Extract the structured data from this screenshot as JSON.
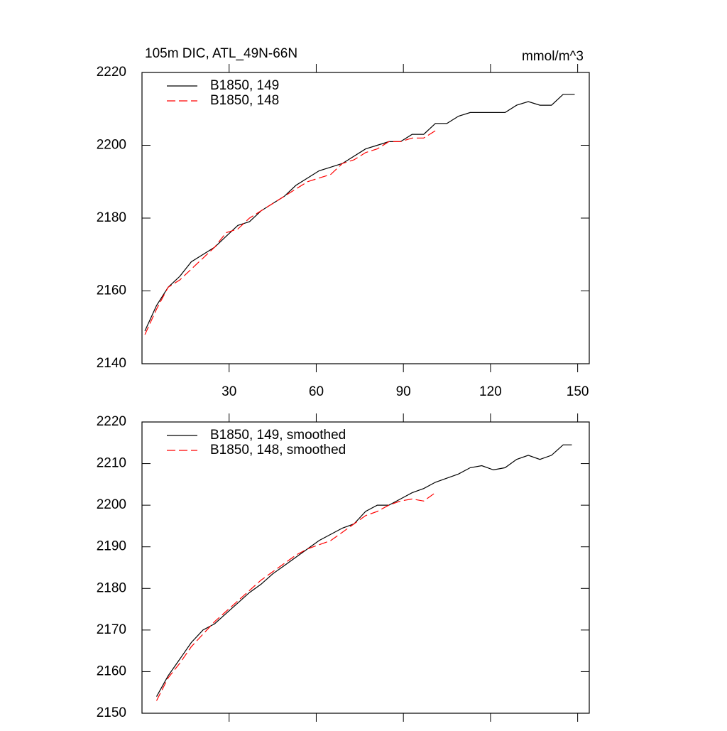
{
  "chart_data": [
    {
      "type": "line",
      "title": "105m DIC, ATL_49N-66N",
      "units": "mmol/m^3",
      "xlim": [
        0,
        154
      ],
      "xticks": [
        30,
        60,
        90,
        120,
        150
      ],
      "show_xtick_labels": true,
      "ylim": [
        2140,
        2220
      ],
      "yticks": [
        2140,
        2160,
        2180,
        2200,
        2220
      ],
      "series": [
        {
          "name": "B1850, 149",
          "color": "#000000",
          "dashed": false,
          "x": [
            1,
            5,
            9,
            13,
            17,
            21,
            25,
            29,
            33,
            37,
            41,
            45,
            49,
            53,
            57,
            61,
            65,
            69,
            73,
            77,
            81,
            85,
            89,
            93,
            97,
            101,
            105,
            109,
            113,
            117,
            121,
            125,
            129,
            133,
            137,
            141,
            145,
            149
          ],
          "values": [
            2149,
            2156,
            2161,
            2164,
            2168,
            2170,
            2172,
            2175,
            2178,
            2179,
            2182,
            2184,
            2186,
            2189,
            2191,
            2193,
            2194,
            2195,
            2197,
            2199,
            2200,
            2201,
            2201,
            2203,
            2203,
            2206,
            2206,
            2208,
            2209,
            2209,
            2209,
            2209,
            2211,
            2212,
            2211,
            2211,
            2214,
            2214
          ]
        },
        {
          "name": "B1850, 148",
          "color": "#ff0000",
          "dashed": true,
          "x": [
            1,
            5,
            9,
            13,
            17,
            21,
            25,
            29,
            33,
            37,
            41,
            45,
            49,
            53,
            57,
            61,
            65,
            69,
            73,
            77,
            81,
            85,
            89,
            93,
            97,
            101
          ],
          "values": [
            2148,
            2155,
            2161,
            2163,
            2166,
            2169,
            2172,
            2176,
            2177,
            2180,
            2182,
            2184,
            2186,
            2188,
            2190,
            2191,
            2192,
            2195,
            2196,
            2198,
            2199,
            2201,
            2201,
            2202,
            2202,
            2204
          ]
        }
      ]
    },
    {
      "type": "line",
      "xlim": [
        0,
        154
      ],
      "xticks": [
        30,
        60,
        90,
        120,
        150
      ],
      "show_xtick_labels": false,
      "ylim": [
        2150,
        2220
      ],
      "yticks": [
        2150,
        2160,
        2170,
        2180,
        2190,
        2200,
        2210,
        2220
      ],
      "series": [
        {
          "name": "B1850, 149, smoothed",
          "color": "#000000",
          "dashed": false,
          "x": [
            5,
            9,
            13,
            17,
            21,
            25,
            29,
            33,
            37,
            41,
            45,
            49,
            53,
            57,
            61,
            65,
            69,
            73,
            77,
            81,
            85,
            89,
            93,
            97,
            101,
            105,
            109,
            113,
            117,
            121,
            125,
            129,
            133,
            137,
            141,
            145,
            148
          ],
          "values": [
            2154,
            2159,
            2163,
            2167,
            2170,
            2171.5,
            2174,
            2176.5,
            2179,
            2181,
            2183.5,
            2185.5,
            2187.5,
            2189.5,
            2191.5,
            2193,
            2194.5,
            2195.5,
            2198.5,
            2200,
            2200,
            2201.5,
            2203,
            2204,
            2205.5,
            2206.5,
            2207.5,
            2209,
            2209.5,
            2208.5,
            2209,
            2211,
            2212,
            2211,
            2212,
            2214.5,
            2214.5
          ]
        },
        {
          "name": "B1850, 148, smoothed",
          "color": "#ff0000",
          "dashed": true,
          "x": [
            5,
            9,
            13,
            17,
            21,
            25,
            29,
            33,
            37,
            41,
            45,
            49,
            53,
            57,
            61,
            65,
            69,
            73,
            77,
            81,
            85,
            89,
            93,
            97,
            101
          ],
          "values": [
            2153,
            2158.5,
            2162,
            2166,
            2169,
            2172,
            2174.5,
            2177,
            2179.5,
            2182,
            2184,
            2186,
            2188,
            2189.5,
            2190.5,
            2191.5,
            2193.5,
            2195.5,
            2197.5,
            2198.5,
            2200,
            2201,
            2201.5,
            2201,
            2203
          ]
        }
      ]
    }
  ]
}
